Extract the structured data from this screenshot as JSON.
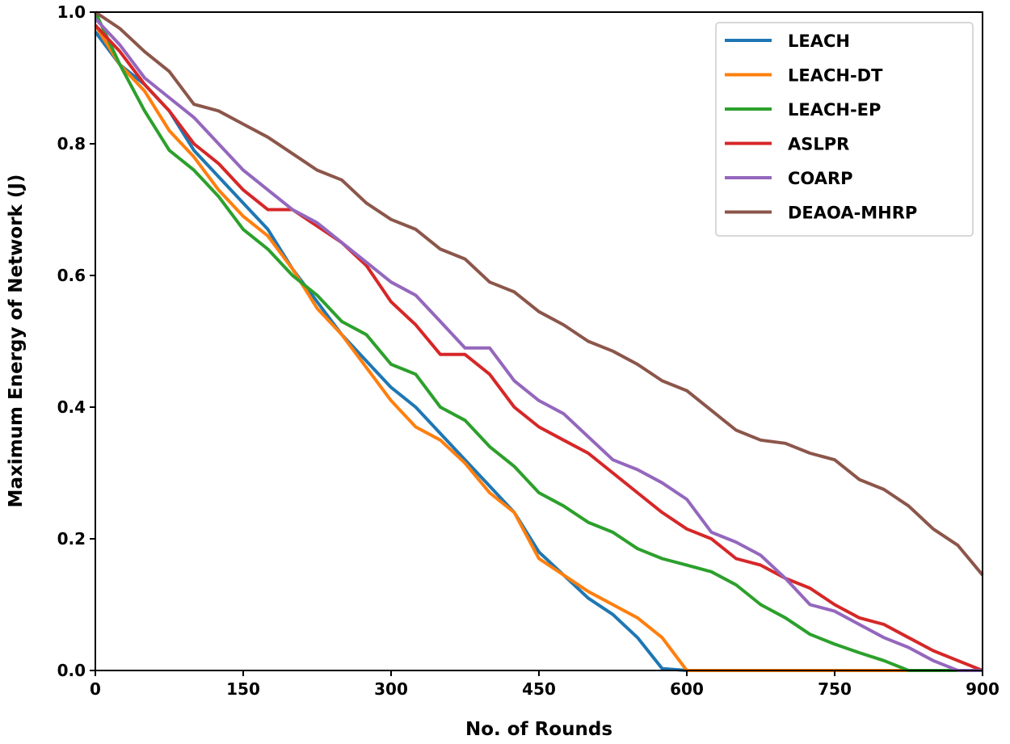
{
  "chart_data": {
    "type": "line",
    "title": "",
    "xlabel": "No. of Rounds",
    "ylabel": "Maximum Energy of Network (J)",
    "xlim": [
      0,
      900
    ],
    "ylim": [
      0,
      1.0
    ],
    "xticks": [
      "0",
      "150",
      "300",
      "450",
      "600",
      "750",
      "900"
    ],
    "yticks": [
      "0.0",
      "0.2",
      "0.4",
      "0.6",
      "0.8",
      "1.0"
    ],
    "grid": false,
    "legend_position": "top-right",
    "x": [
      0,
      25,
      50,
      75,
      100,
      125,
      150,
      175,
      200,
      225,
      250,
      275,
      300,
      325,
      350,
      375,
      400,
      425,
      450,
      475,
      500,
      525,
      550,
      575,
      600,
      625,
      650,
      675,
      700,
      725,
      750,
      775,
      800,
      825,
      850,
      875,
      900
    ],
    "series": [
      {
        "name": "LEACH",
        "color": "#1f77b4",
        "values": [
          0.97,
          0.92,
          0.89,
          0.85,
          0.79,
          0.75,
          0.71,
          0.67,
          0.61,
          0.56,
          0.51,
          0.47,
          0.43,
          0.4,
          0.36,
          0.32,
          0.28,
          0.24,
          0.18,
          0.145,
          0.11,
          0.085,
          0.05,
          0.003,
          0,
          0,
          0,
          0,
          0,
          0,
          0,
          0,
          0,
          0,
          0,
          0,
          0
        ]
      },
      {
        "name": "LEACH-DT",
        "color": "#ff7f0e",
        "values": [
          0.98,
          0.92,
          0.88,
          0.82,
          0.78,
          0.73,
          0.69,
          0.66,
          0.61,
          0.55,
          0.51,
          0.46,
          0.41,
          0.37,
          0.35,
          0.315,
          0.27,
          0.24,
          0.17,
          0.145,
          0.12,
          0.1,
          0.08,
          0.05,
          0,
          0,
          0,
          0,
          0,
          0,
          0,
          0,
          0,
          0,
          0,
          0,
          0
        ]
      },
      {
        "name": "LEACH-EP",
        "color": "#2ca02c",
        "values": [
          1.0,
          0.92,
          0.85,
          0.79,
          0.76,
          0.72,
          0.67,
          0.64,
          0.6,
          0.57,
          0.53,
          0.51,
          0.465,
          0.45,
          0.4,
          0.38,
          0.34,
          0.31,
          0.27,
          0.25,
          0.225,
          0.21,
          0.185,
          0.17,
          0.16,
          0.15,
          0.13,
          0.1,
          0.08,
          0.055,
          0.04,
          0.027,
          0.015,
          0,
          0,
          0,
          0
        ]
      },
      {
        "name": "ASLPR",
        "color": "#d62728",
        "values": [
          0.98,
          0.94,
          0.89,
          0.85,
          0.8,
          0.77,
          0.73,
          0.7,
          0.7,
          0.675,
          0.65,
          0.615,
          0.56,
          0.525,
          0.48,
          0.48,
          0.45,
          0.4,
          0.37,
          0.35,
          0.33,
          0.3,
          0.27,
          0.24,
          0.215,
          0.2,
          0.17,
          0.16,
          0.14,
          0.125,
          0.1,
          0.08,
          0.07,
          0.05,
          0.03,
          0.015,
          0
        ]
      },
      {
        "name": "COARP",
        "color": "#9467bd",
        "values": [
          0.99,
          0.95,
          0.9,
          0.87,
          0.84,
          0.8,
          0.76,
          0.73,
          0.7,
          0.68,
          0.65,
          0.62,
          0.59,
          0.57,
          0.53,
          0.49,
          0.49,
          0.44,
          0.41,
          0.39,
          0.355,
          0.32,
          0.305,
          0.285,
          0.26,
          0.21,
          0.195,
          0.175,
          0.14,
          0.1,
          0.09,
          0.07,
          0.05,
          0.035,
          0.015,
          0,
          0
        ]
      },
      {
        "name": "DEAOA-MHRP",
        "color": "#8c564b",
        "values": [
          1.0,
          0.975,
          0.94,
          0.91,
          0.86,
          0.85,
          0.83,
          0.81,
          0.785,
          0.76,
          0.745,
          0.71,
          0.685,
          0.67,
          0.64,
          0.625,
          0.59,
          0.575,
          0.545,
          0.525,
          0.5,
          0.485,
          0.465,
          0.44,
          0.425,
          0.395,
          0.365,
          0.35,
          0.345,
          0.33,
          0.32,
          0.29,
          0.275,
          0.25,
          0.215,
          0.19,
          0.145
        ]
      }
    ]
  }
}
